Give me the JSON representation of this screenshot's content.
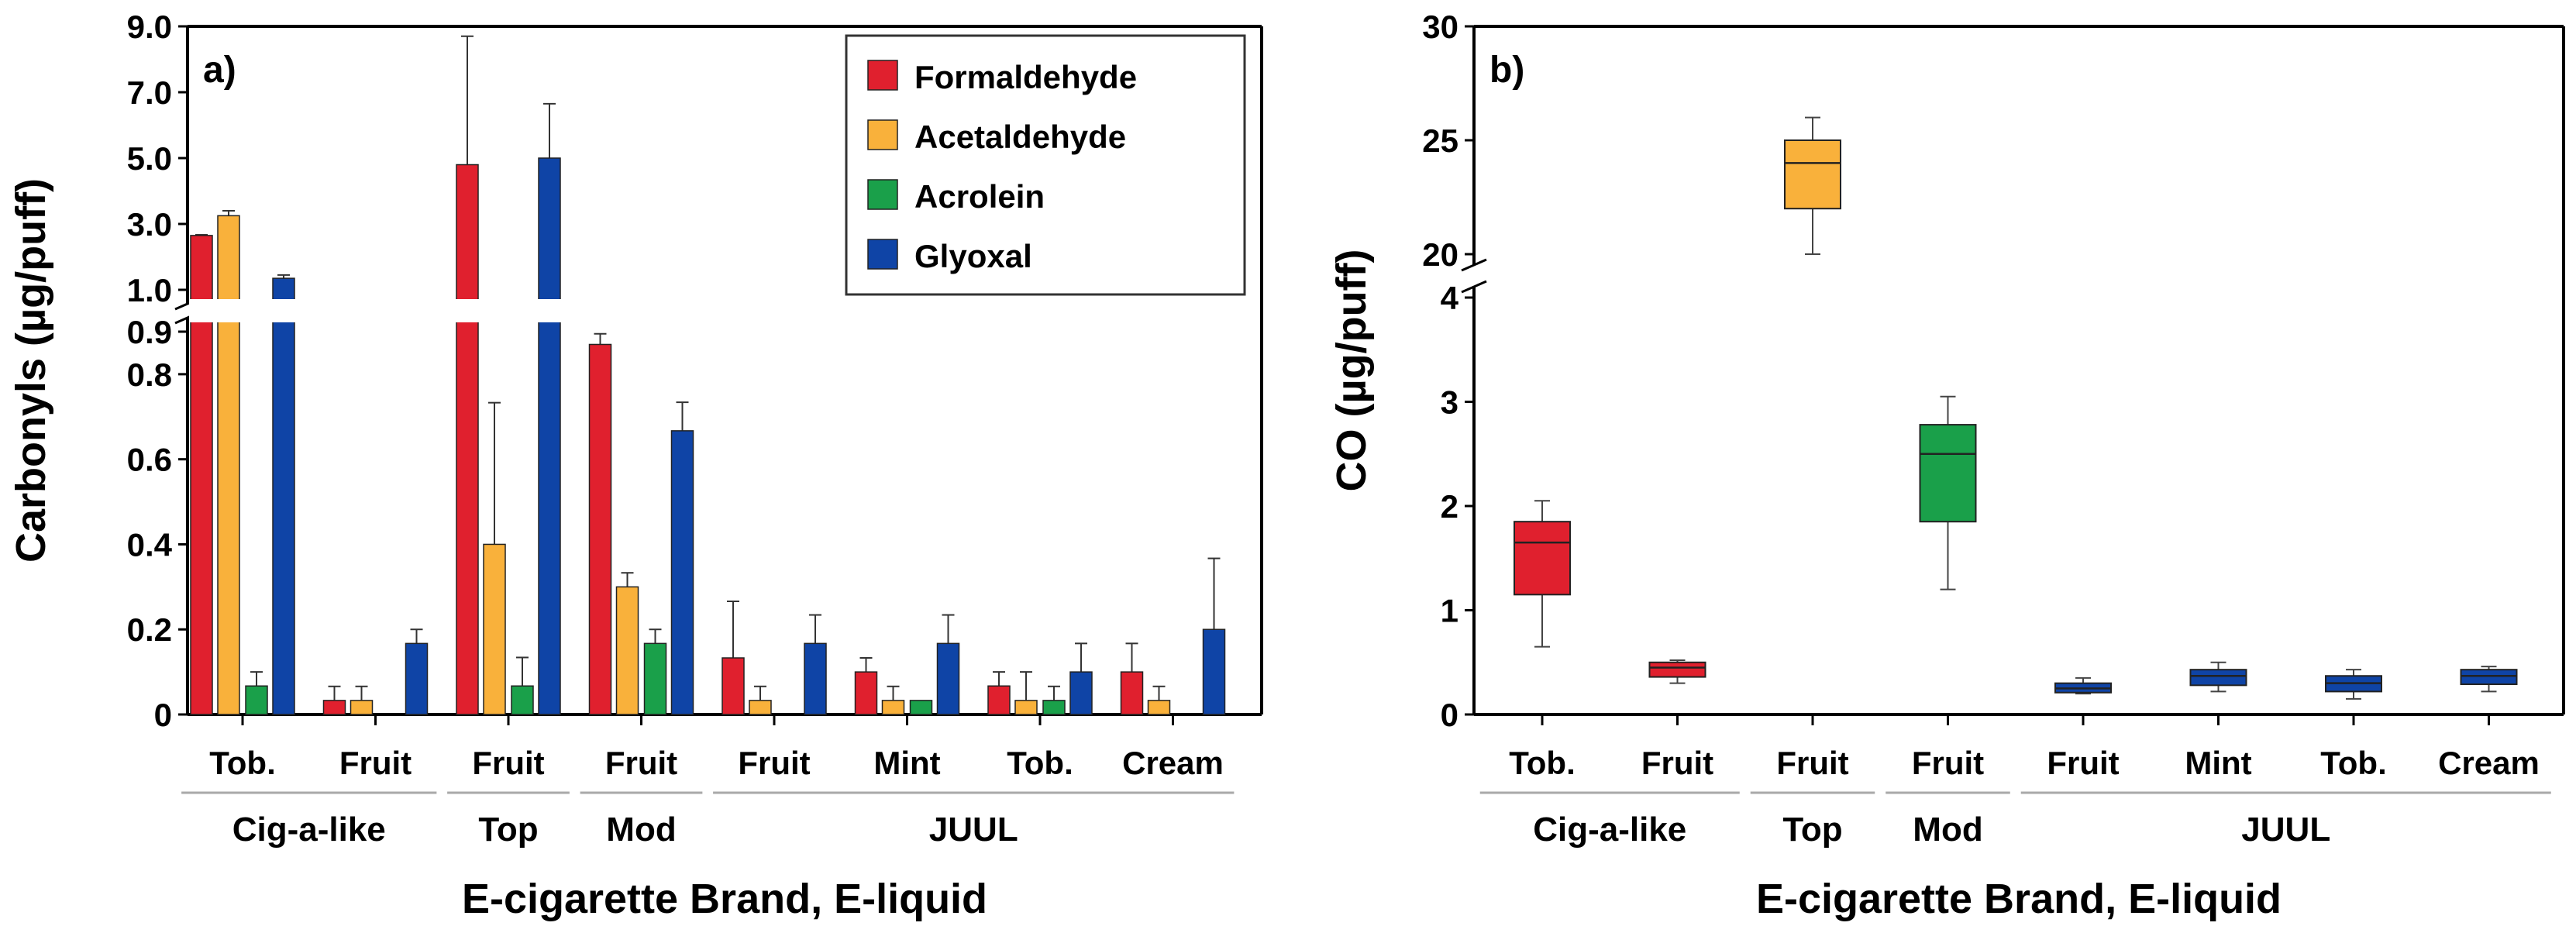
{
  "colors": {
    "formaldehyde": "#e0202e",
    "acetaldehyde": "#f9b13b",
    "acrolein": "#1aa04a",
    "glyoxal": "#0f44a6",
    "group_line": "#a9a9a9"
  },
  "chart_data": [
    {
      "type": "bar",
      "panel_label": "a)",
      "ylabel": "Carbonyls (µg/puff)",
      "xlabel": "E-cigarette Brand, E-liquid",
      "y_axis": {
        "broken": true,
        "lower_range": [
          0,
          0.9
        ],
        "upper_range": [
          1.0,
          9.0
        ],
        "lower_ticks": [
          {
            "value": 0,
            "label": "0"
          },
          {
            "value": 0.2,
            "label": "0.2"
          },
          {
            "value": 0.4,
            "label": "0.4"
          },
          {
            "value": 0.6,
            "label": "0.6"
          },
          {
            "value": 0.8,
            "label": "0.8"
          },
          {
            "value": 0.9,
            "label": "0.9"
          }
        ],
        "upper_ticks": [
          {
            "value": 1.0,
            "label": "1.0"
          },
          {
            "value": 3.0,
            "label": "3.0"
          },
          {
            "value": 5.0,
            "label": "5.0"
          },
          {
            "value": 7.0,
            "label": "7.0"
          },
          {
            "value": 9.0,
            "label": "9.0"
          }
        ]
      },
      "categories": [
        "Tob.",
        "Fruit",
        "Fruit",
        "Fruit",
        "Fruit",
        "Mint",
        "Tob.",
        "Cream"
      ],
      "groups": [
        {
          "label": "Cig-a-like",
          "span": [
            0,
            1
          ]
        },
        {
          "label": "Top",
          "span": [
            2,
            2
          ]
        },
        {
          "label": "Mod",
          "span": [
            3,
            3
          ]
        },
        {
          "label": "JUUL",
          "span": [
            4,
            7
          ]
        }
      ],
      "legend": {
        "position": "top-right",
        "entries": [
          "Formaldehyde",
          "Acetaldehyde",
          "Acrolein",
          "Glyoxal"
        ]
      },
      "series": [
        {
          "name": "Formaldehyde",
          "color_key": "formaldehyde",
          "values": [
            2.65,
            0.033,
            4.8,
            0.87,
            0.133,
            0.1,
            0.067,
            0.1
          ],
          "errors": [
            0.02,
            0.033,
            3.9,
            0.025,
            0.133,
            0.033,
            0.033,
            0.067
          ]
        },
        {
          "name": "Acetaldehyde",
          "color_key": "acetaldehyde",
          "values": [
            3.25,
            0.033,
            0.4,
            0.3,
            0.033,
            0.033,
            0.033,
            0.033
          ],
          "errors": [
            0.15,
            0.033,
            0.333,
            0.033,
            0.033,
            0.033,
            0.067,
            0.033
          ]
        },
        {
          "name": "Acrolein",
          "color_key": "acrolein",
          "values": [
            0.067,
            0.0,
            0.067,
            0.167,
            0.0,
            0.033,
            0.033,
            0.0
          ],
          "errors": [
            0.033,
            0.0,
            0.067,
            0.033,
            0.0,
            0.0,
            0.033,
            0.0
          ]
        },
        {
          "name": "Glyoxal",
          "color_key": "glyoxal",
          "values": [
            1.35,
            0.167,
            5.0,
            0.667,
            0.167,
            0.167,
            0.1,
            0.2
          ],
          "errors": [
            0.1,
            0.033,
            1.65,
            0.067,
            0.067,
            0.067,
            0.067,
            0.167
          ]
        }
      ]
    },
    {
      "type": "box",
      "panel_label": "b)",
      "ylabel": "CO (µg/puff)",
      "xlabel": "E-cigarette Brand, E-liquid",
      "y_axis": {
        "broken": true,
        "lower_range": [
          0,
          4
        ],
        "upper_range": [
          20,
          30
        ],
        "lower_ticks": [
          {
            "value": 0,
            "label": "0"
          },
          {
            "value": 1,
            "label": "1"
          },
          {
            "value": 2,
            "label": "2"
          },
          {
            "value": 3,
            "label": "3"
          },
          {
            "value": 4,
            "label": "4"
          }
        ],
        "upper_ticks": [
          {
            "value": 20,
            "label": "20"
          },
          {
            "value": 25,
            "label": "25"
          },
          {
            "value": 30,
            "label": "30"
          }
        ]
      },
      "categories": [
        "Tob.",
        "Fruit",
        "Fruit",
        "Fruit",
        "Fruit",
        "Mint",
        "Tob.",
        "Cream"
      ],
      "groups": [
        {
          "label": "Cig-a-like",
          "span": [
            0,
            1
          ]
        },
        {
          "label": "Top",
          "span": [
            2,
            2
          ]
        },
        {
          "label": "Mod",
          "span": [
            3,
            3
          ]
        },
        {
          "label": "JUUL",
          "span": [
            4,
            7
          ]
        }
      ],
      "boxes": [
        {
          "category": "Tob.",
          "group": "Cig-a-like",
          "color_key": "formaldehyde",
          "min": 0.65,
          "q1": 1.15,
          "median": 1.65,
          "q3": 1.85,
          "max": 2.05
        },
        {
          "category": "Fruit",
          "group": "Cig-a-like",
          "color_key": "formaldehyde",
          "min": 0.3,
          "q1": 0.36,
          "median": 0.45,
          "q3": 0.5,
          "max": 0.52
        },
        {
          "category": "Fruit",
          "group": "Top",
          "color_key": "acetaldehyde",
          "min": 20.0,
          "q1": 22.0,
          "median": 24.0,
          "q3": 25.0,
          "max": 26.0
        },
        {
          "category": "Fruit",
          "group": "Mod",
          "color_key": "acrolein",
          "min": 1.2,
          "q1": 1.85,
          "median": 2.5,
          "q3": 2.78,
          "max": 3.05
        },
        {
          "category": "Fruit",
          "group": "JUUL",
          "color_key": "glyoxal",
          "min": 0.2,
          "q1": 0.21,
          "median": 0.25,
          "q3": 0.3,
          "max": 0.35
        },
        {
          "category": "Mint",
          "group": "JUUL",
          "color_key": "glyoxal",
          "min": 0.22,
          "q1": 0.28,
          "median": 0.37,
          "q3": 0.43,
          "max": 0.5
        },
        {
          "category": "Tob.",
          "group": "JUUL",
          "color_key": "glyoxal",
          "min": 0.15,
          "q1": 0.22,
          "median": 0.3,
          "q3": 0.37,
          "max": 0.43
        },
        {
          "category": "Cream",
          "group": "JUUL",
          "color_key": "glyoxal",
          "min": 0.22,
          "q1": 0.29,
          "median": 0.37,
          "q3": 0.43,
          "max": 0.46
        }
      ]
    }
  ]
}
